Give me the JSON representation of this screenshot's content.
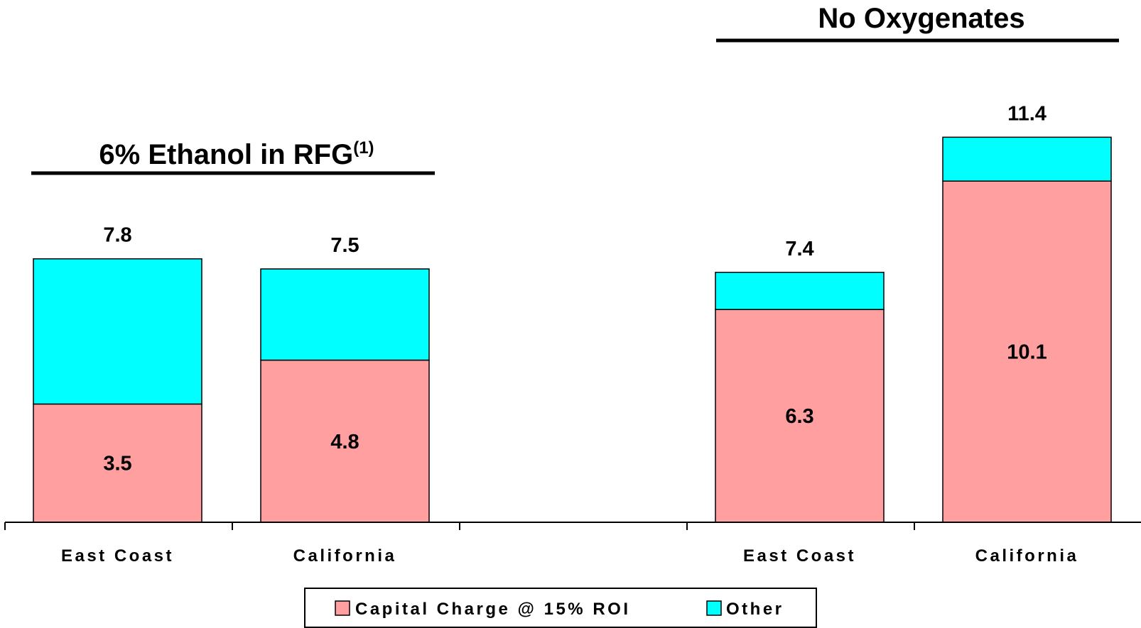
{
  "chart_data": {
    "type": "bar",
    "stacked": true,
    "groups": [
      {
        "title": "6% Ethanol in RFG",
        "title_superscript": "(1)",
        "categories": [
          "East Coast",
          "California"
        ]
      },
      {
        "title": "No Oxygenates",
        "title_superscript": "",
        "categories": [
          "East Coast",
          "California"
        ]
      }
    ],
    "categories": [
      "East Coast",
      "California",
      "East Coast",
      "California"
    ],
    "series": [
      {
        "name": "Capital Charge @ 15% ROI",
        "color": "#ff9f9f",
        "values": [
          3.5,
          4.8,
          6.3,
          10.1
        ],
        "labels": [
          "3.5",
          "4.8",
          "6.3",
          "10.1"
        ]
      },
      {
        "name": "Other",
        "color": "#00ffff",
        "values": [
          4.3,
          2.7,
          1.1,
          1.3
        ]
      }
    ],
    "totals": [
      7.8,
      7.5,
      7.4,
      11.4
    ],
    "total_labels": [
      "7.8",
      "7.5",
      "7.4",
      "11.4"
    ],
    "ylim": [
      0,
      12
    ],
    "grid": false,
    "legend_position": "bottom-center"
  }
}
